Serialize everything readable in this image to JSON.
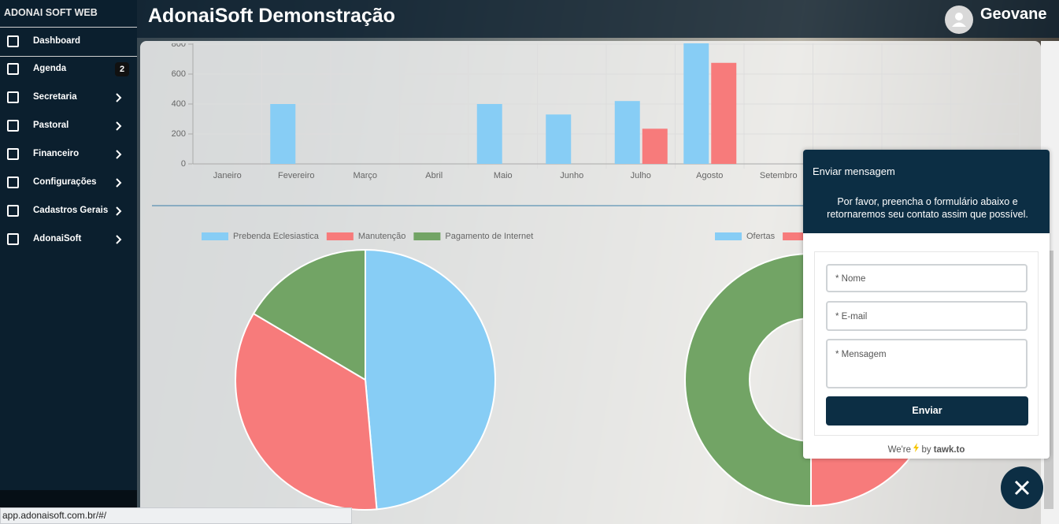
{
  "sidebar": {
    "brand": "ADONAI SOFT WEB",
    "items": [
      {
        "label": "Dashboard"
      },
      {
        "label": "Agenda",
        "badge": "2"
      },
      {
        "label": "Secretaria"
      },
      {
        "label": "Pastoral"
      },
      {
        "label": "Financeiro"
      },
      {
        "label": "Configurações"
      },
      {
        "label": "Cadastros Gerais"
      },
      {
        "label": "AdonaiSoft"
      }
    ]
  },
  "header": {
    "title": "AdonaiSoft Demonstração",
    "user": "Geovane"
  },
  "chart_data": [
    {
      "type": "bar",
      "categories": [
        "Janeiro",
        "Fevereiro",
        "Março",
        "Abril",
        "Maio",
        "Junho",
        "Julho",
        "Agosto",
        "Setembro"
      ],
      "series": [
        {
          "color": "#87cdf5",
          "values": [
            null,
            400,
            null,
            null,
            400,
            330,
            420,
            810,
            null
          ]
        },
        {
          "color": "#f77b7b",
          "values": [
            null,
            null,
            null,
            null,
            null,
            null,
            235,
            675,
            null
          ]
        }
      ],
      "ylim": [
        0,
        800
      ],
      "yticks": [
        0,
        200,
        400,
        600,
        800
      ],
      "grid": true
    },
    {
      "type": "pie",
      "categories": [
        "Prebenda Eclesiastica",
        "Manutenção",
        "Pagamento de Internet"
      ],
      "values": [
        48.6,
        34.9,
        16.5
      ],
      "colors": [
        "#87cdf5",
        "#f77b7b",
        "#72a465"
      ]
    },
    {
      "type": "doughnut",
      "categories": [
        "Ofertas",
        null,
        null
      ],
      "values": [
        5,
        45,
        50
      ],
      "colors": [
        "#87cdf5",
        "#f77b7b",
        "#72a465"
      ]
    }
  ],
  "chat": {
    "title": "Enviar mensagem",
    "message": "Por favor, preencha o formulário abaixo e retornaremos seu contato assim que possível.",
    "fields": [
      "* Nome",
      "* E-mail",
      "* Mensagem"
    ],
    "button": "Enviar",
    "footer": {
      "prefix": "We're",
      "by": "by",
      "brand": "tawk.to"
    }
  },
  "status": "app.adonaisoft.com.br/#/"
}
